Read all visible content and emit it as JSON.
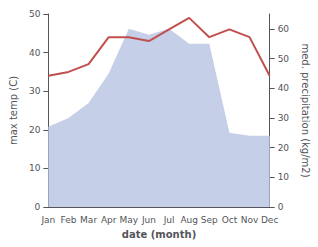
{
  "chart_data": {
    "type": "line",
    "xlabel": "date (month)",
    "ylabel": "max temp (C)",
    "y2label": "med. precipitation (kg/m2)",
    "categories": [
      "Jan",
      "Feb",
      "Mar",
      "Apr",
      "May",
      "Jun",
      "Jul",
      "Aug",
      "Sep",
      "Oct",
      "Nov",
      "Dec"
    ],
    "series": [
      {
        "type": "area",
        "color": "#c5cfe8",
        "axis": "y2",
        "values": [
          27,
          30,
          35,
          45,
          60,
          58,
          60,
          55,
          55,
          25,
          24,
          24
        ]
      },
      {
        "type": "line",
        "color": "#c0504d",
        "values": [
          34,
          35,
          37,
          44,
          44,
          43,
          46,
          49,
          44,
          46,
          44,
          34
        ]
      }
    ],
    "ylim": [
      0,
      50
    ],
    "yticks": [
      0,
      10,
      20,
      30,
      40,
      50
    ],
    "y2lim": [
      0,
      65
    ],
    "y2ticks": [
      0,
      10,
      20,
      30,
      40,
      50,
      60
    ],
    "grid": false
  }
}
